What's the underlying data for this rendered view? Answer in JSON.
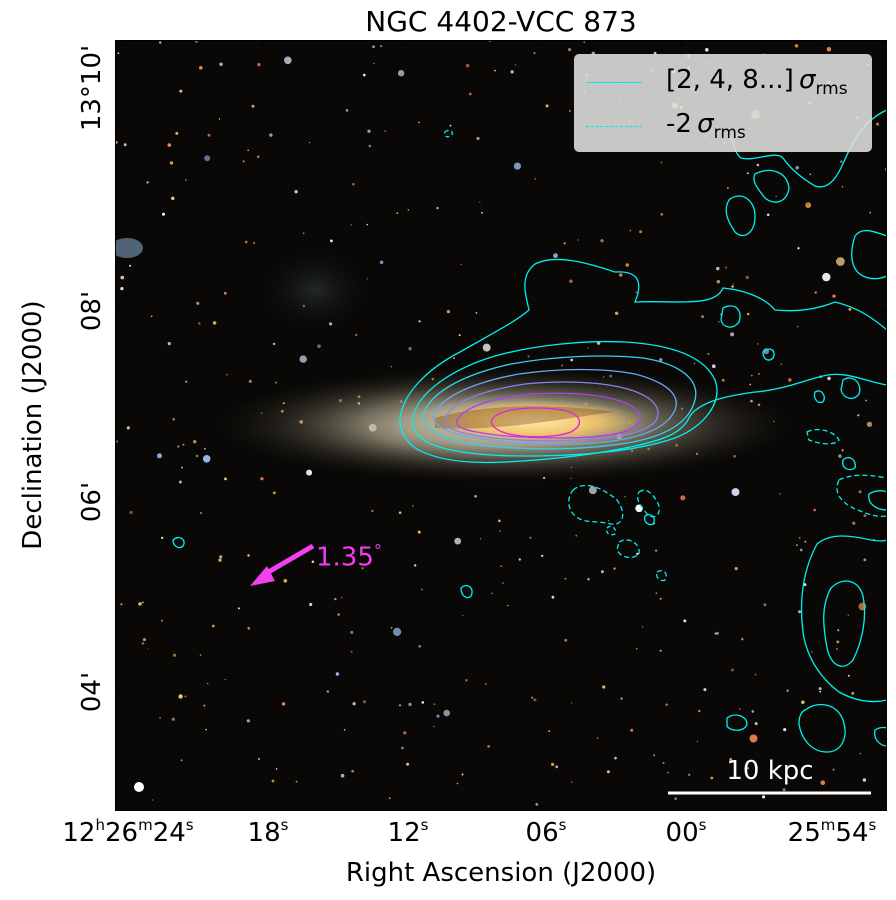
{
  "title": "NGC 4402-VCC 873",
  "xlabel": "Right Ascension (J2000)",
  "ylabel": "Declination (J2000)",
  "xticks": [
    {
      "h": "12",
      "hu": "h",
      "m": "26",
      "mu": "m",
      "s": "24",
      "su": "s"
    },
    {
      "s": "18",
      "su": "s"
    },
    {
      "s": "12",
      "su": "s"
    },
    {
      "s": "06",
      "su": "s"
    },
    {
      "s": "00",
      "su": "s"
    },
    {
      "m": "25",
      "mu": "m",
      "s": "54",
      "su": "s"
    }
  ],
  "yticks": [
    "13°10'",
    "08'",
    "06'",
    "04'"
  ],
  "legend": {
    "solid_label": "[2, 4, 8...]",
    "dashed_label": "-2",
    "sigma": "σ",
    "rms": "rms"
  },
  "annotations": {
    "angle": "1.35",
    "degree": "°",
    "scale_bar": "10 kpc"
  },
  "colors": {
    "background_sky": "#0a0806",
    "contour_outer": "#00f0f0",
    "contour_mid": "#6aa8f0",
    "contour_inner": "#b040f0",
    "contour_core": "#e020e0",
    "arrow": "#f040f0"
  }
}
